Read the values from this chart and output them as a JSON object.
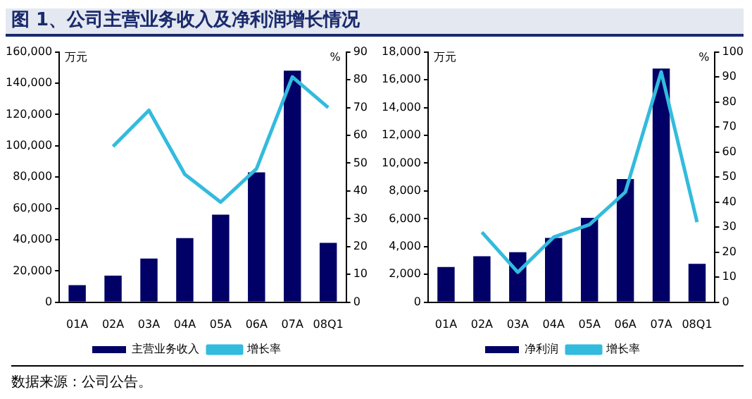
{
  "chart_data": [
    {
      "type": "bar",
      "title": "图 1、公司主营业务收入及净利润增长情况",
      "ylabel": "万元",
      "y2label": "%",
      "categories": [
        "01A",
        "02A",
        "03A",
        "04A",
        "05A",
        "06A",
        "07A",
        "08Q1"
      ],
      "series": [
        {
          "name": "主营业务收入",
          "color": "#000066",
          "values": [
            11000,
            17000,
            28000,
            41000,
            56000,
            83000,
            148000,
            38000
          ]
        },
        {
          "name": "增长率",
          "type": "line",
          "axis": "y2",
          "color": "#33bbdd",
          "values": [
            null,
            56,
            69,
            46,
            36,
            48,
            81,
            70
          ]
        }
      ],
      "ylim": [
        0,
        160000
      ],
      "yticks": [
        0,
        {
          "value": 20000,
          "label": "20,000"
        },
        {
          "value": 40000,
          "label": "40,000"
        },
        {
          "value": 60000,
          "label": "60,000"
        },
        {
          "value": 80000,
          "label": "80,000"
        },
        {
          "value": 100000,
          "label": "100,000"
        },
        {
          "value": 120000,
          "label": "120,000"
        },
        {
          "value": 140000,
          "label": "140,000"
        },
        {
          "value": 160000,
          "label": "160,000"
        }
      ],
      "y2lim": [
        0,
        90
      ],
      "y2ticks": [
        0,
        10,
        20,
        30,
        40,
        50,
        60,
        70,
        80,
        90
      ],
      "grid": false,
      "legend": "bottom",
      "marker": "none"
    },
    {
      "type": "bar",
      "ylabel": "万元",
      "y2label": "%",
      "categories": [
        "01A",
        "02A",
        "03A",
        "04A",
        "05A",
        "06A",
        "07A",
        "08Q1"
      ],
      "series": [
        {
          "name": "净利润",
          "color": "#000066",
          "values": [
            2540,
            3310,
            3600,
            4630,
            6070,
            8860,
            16800,
            2760
          ]
        },
        {
          "name": "增长率",
          "type": "line",
          "axis": "y2",
          "color": "#33bbdd",
          "values": [
            null,
            28,
            12,
            26,
            31,
            44,
            92,
            32
          ]
        }
      ],
      "ylim": [
        0,
        18000
      ],
      "yticks": [
        0,
        {
          "value": 2000,
          "label": "2,000"
        },
        {
          "value": 4000,
          "label": "4,000"
        },
        {
          "value": 6000,
          "label": "6,000"
        },
        {
          "value": 8000,
          "label": "8,000"
        },
        {
          "value": 10000,
          "label": "10,000"
        },
        {
          "value": 12000,
          "label": "12,000"
        },
        {
          "value": 14000,
          "label": "14,000"
        },
        {
          "value": 16000,
          "label": "16,000"
        },
        {
          "value": 18000,
          "label": "18,000"
        }
      ],
      "y2lim": [
        0,
        100
      ],
      "y2ticks": [
        0,
        10,
        20,
        30,
        40,
        50,
        60,
        70,
        80,
        90,
        100
      ],
      "grid": false,
      "legend": "bottom",
      "marker": "none",
      "annotations": [
        "数据来源：公司公告。"
      ]
    }
  ]
}
